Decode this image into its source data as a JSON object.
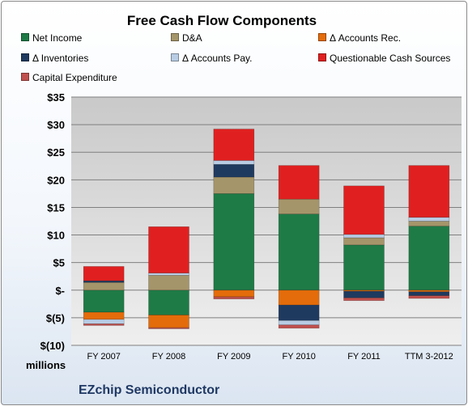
{
  "chart_data": {
    "type": "bar",
    "stacked": true,
    "title": "Free Cash Flow Components",
    "xlabel": "",
    "ylabel": "",
    "y_units_label": "millions",
    "ylim": [
      -10,
      35
    ],
    "ytick_values": [
      -10,
      -5,
      0,
      5,
      10,
      15,
      20,
      25,
      30,
      35
    ],
    "ytick_labels": [
      "$(10)",
      "$(5)",
      "$-",
      "$5",
      "$10",
      "$15",
      "$20",
      "$25",
      "$30",
      "$35"
    ],
    "grid": "horizontal",
    "legend_position": "top",
    "categories": [
      "FY 2007",
      "FY 2008",
      "FY 2009",
      "FY 2010",
      "FY 2011",
      "TTM 3-2012"
    ],
    "series": [
      {
        "name": "Net Income",
        "color": "#1e7b46",
        "values": [
          -4.0,
          -4.5,
          17.5,
          13.8,
          8.2,
          11.6
        ]
      },
      {
        "name": "D&A",
        "color": "#a5956a",
        "values": [
          1.4,
          2.7,
          3.0,
          2.7,
          1.3,
          0.9
        ]
      },
      {
        "name": "Δ Accounts Rec.",
        "color": "#e46c0a",
        "values": [
          -1.3,
          -2.3,
          -1.2,
          -2.7,
          -0.2,
          -0.3
        ]
      },
      {
        "name": "Δ Inventories",
        "color": "#1f3a5f",
        "values": [
          0.3,
          0.0,
          2.3,
          -2.8,
          -1.2,
          -0.7
        ]
      },
      {
        "name": "Δ Accounts Pay.",
        "color": "#b8cce4",
        "values": [
          -0.8,
          0.4,
          0.7,
          -0.8,
          0.6,
          0.7
        ]
      },
      {
        "name": "Questionable Cash Sources",
        "color": "#e02020",
        "values": [
          2.6,
          8.4,
          5.7,
          6.1,
          8.8,
          9.4
        ]
      },
      {
        "name": "Capital Expenditure",
        "color": "#c0504d",
        "values": [
          -0.3,
          -0.2,
          -0.4,
          -0.6,
          -0.5,
          -0.5
        ]
      }
    ]
  },
  "company_name": "EZchip Semiconductor"
}
